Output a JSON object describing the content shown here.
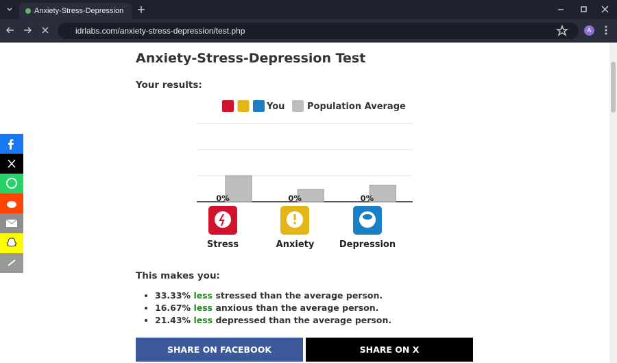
{
  "browser": {
    "tab_title": "Anxiety-Stress-Depression Test",
    "url": "idrlabs.com/anxiety-stress-depression/test.php",
    "avatar": "A"
  },
  "page": {
    "title": "Anxiety-Stress-Depression Test",
    "results_heading": "Your results:",
    "makes_you": "This makes you:",
    "results": [
      {
        "percent": "33.33%",
        "comparison": "less",
        "rest": "stressed than the average person."
      },
      {
        "percent": "16.67%",
        "comparison": "less",
        "rest": "anxious than the average person."
      },
      {
        "percent": "21.43%",
        "comparison": "less",
        "rest": "depressed than the average person."
      }
    ],
    "share_facebook": "SHARE ON FACEBOOK",
    "share_x": "SHARE ON X"
  },
  "chart_data": {
    "type": "bar",
    "categories": [
      "Stress",
      "Anxiety",
      "Depression"
    ],
    "series": [
      {
        "name": "You",
        "colors": [
          "#d0122c",
          "#e2b616",
          "#1a7fc4"
        ],
        "values": [
          0,
          0,
          0
        ],
        "value_labels": [
          "0%",
          "0%",
          "0%"
        ]
      },
      {
        "name": "Population Average",
        "color": "#bdbdbd",
        "values": [
          10,
          4.7,
          6.3
        ]
      }
    ],
    "ylim": [
      0,
      30
    ],
    "yticks": [
      0,
      10,
      20,
      30
    ],
    "grid": true
  }
}
